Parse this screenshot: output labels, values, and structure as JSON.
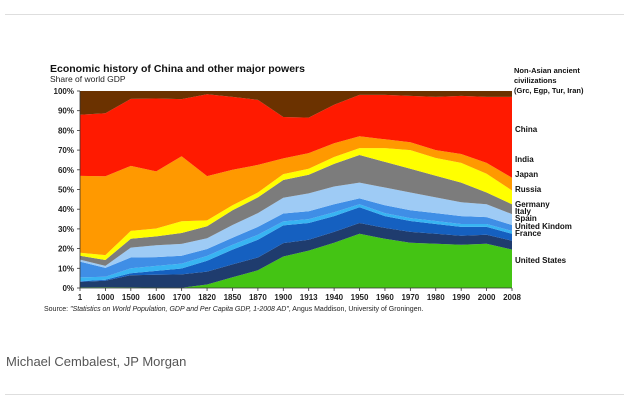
{
  "caption": "Michael Cembalest, JP Morgan",
  "chart_data": {
    "type": "area",
    "stacked": true,
    "title": "Economic history of China and other major powers",
    "subtitle": "Share of world GDP",
    "xlabel": "",
    "ylabel": "",
    "ylim": [
      0,
      100
    ],
    "yticks": [
      "0%",
      "10%",
      "20%",
      "30%",
      "40%",
      "50%",
      "60%",
      "70%",
      "80%",
      "90%",
      "100%"
    ],
    "categories": [
      "1",
      "1000",
      "1500",
      "1600",
      "1700",
      "1820",
      "1850",
      "1870",
      "1900",
      "1913",
      "1940",
      "1950",
      "1960",
      "1970",
      "1980",
      "1990",
      "2000",
      "2008"
    ],
    "source_prefix": "Source: ",
    "source_italic": "\"Statistics on World Population, GDP and Per Capita GDP, 1-2008 AD\"",
    "source_suffix": ", Angus Maddison, University of Groningen.",
    "legend_placement": "right",
    "series": [
      {
        "name": "United States",
        "color": "#44c414",
        "values": [
          0.3,
          0.4,
          0.3,
          0.2,
          0.1,
          1.8,
          5.5,
          9.0,
          16.0,
          19.0,
          23.0,
          27.5,
          25.0,
          23.0,
          22.5,
          22.0,
          22.5,
          19.5
        ]
      },
      {
        "name": "France",
        "color": "#1f3c6e",
        "values": [
          2.8,
          3.3,
          6.2,
          6.5,
          6.8,
          6.5,
          6.5,
          6.5,
          6.8,
          5.5,
          5.5,
          5.5,
          5.5,
          5.5,
          5.0,
          4.5,
          4.5,
          4.5
        ]
      },
      {
        "name": "United Kindom",
        "color": "#1560c0",
        "values": [
          0.3,
          0.5,
          1.0,
          2.0,
          3.0,
          5.5,
          7.5,
          9.0,
          9.0,
          8.5,
          8.0,
          8.0,
          6.0,
          5.5,
          5.0,
          4.5,
          4.0,
          3.5
        ]
      },
      {
        "name": "Spain",
        "color": "#38b4f2",
        "values": [
          2.0,
          1.5,
          2.5,
          2.5,
          2.5,
          2.5,
          2.5,
          2.5,
          2.0,
          2.0,
          2.0,
          1.5,
          1.5,
          1.5,
          1.5,
          1.5,
          1.5,
          1.5
        ]
      },
      {
        "name": "Italy",
        "color": "#3f8ee6",
        "values": [
          8.0,
          4.5,
          5.5,
          4.5,
          4.0,
          3.5,
          3.5,
          4.0,
          4.0,
          4.0,
          4.0,
          3.0,
          4.0,
          4.0,
          4.0,
          4.0,
          3.5,
          3.0
        ]
      },
      {
        "name": "Germany",
        "color": "#9ecbf5",
        "values": [
          1.0,
          1.0,
          5.0,
          6.0,
          6.0,
          5.5,
          6.5,
          7.0,
          8.0,
          9.0,
          9.0,
          8.0,
          9.0,
          9.0,
          8.0,
          7.0,
          6.5,
          5.5
        ]
      },
      {
        "name": "Russia",
        "color": "#7c7c7c",
        "values": [
          2.0,
          3.0,
          4.5,
          4.5,
          5.5,
          6.0,
          7.5,
          8.0,
          9.0,
          9.5,
          11.5,
          14.0,
          13.0,
          12.0,
          11.0,
          10.0,
          6.0,
          5.0
        ]
      },
      {
        "name": "Japan",
        "color": "#ffff00",
        "values": [
          1.5,
          2.5,
          4.0,
          4.0,
          6.0,
          3.0,
          2.5,
          2.5,
          3.0,
          3.0,
          3.5,
          3.5,
          7.0,
          9.5,
          9.0,
          10.0,
          9.5,
          7.0
        ]
      },
      {
        "name": "India",
        "color": "#ff9900",
        "values": [
          39.0,
          40.0,
          33.0,
          29.0,
          33.0,
          22.5,
          18.0,
          14.0,
          8.0,
          8.0,
          7.0,
          6.0,
          4.5,
          4.0,
          4.0,
          4.5,
          5.5,
          6.5
        ]
      },
      {
        "name": "China",
        "color": "#ff1a00",
        "values": [
          31.0,
          32.0,
          34.0,
          37.0,
          29.0,
          41.5,
          37.0,
          33.0,
          21.0,
          18.0,
          19.5,
          21.0,
          22.5,
          23.5,
          27.0,
          29.5,
          33.5,
          41.0
        ]
      },
      {
        "name": "Non-Asian ancient civilizations (Grc, Egp, Tur, Iran)",
        "label_lines": [
          "Non-Asian ancient",
          "civilizations",
          "(Grc, Egp, Tur, Iran)"
        ],
        "color": "#6b3200",
        "values": [
          12.1,
          11.3,
          4.0,
          3.8,
          4.1,
          1.7,
          3.0,
          2.5,
          3.2,
          3.5,
          2.0,
          2.0,
          1.5,
          1.5,
          3.0,
          2.5,
          3.0,
          3.0
        ]
      }
    ]
  }
}
